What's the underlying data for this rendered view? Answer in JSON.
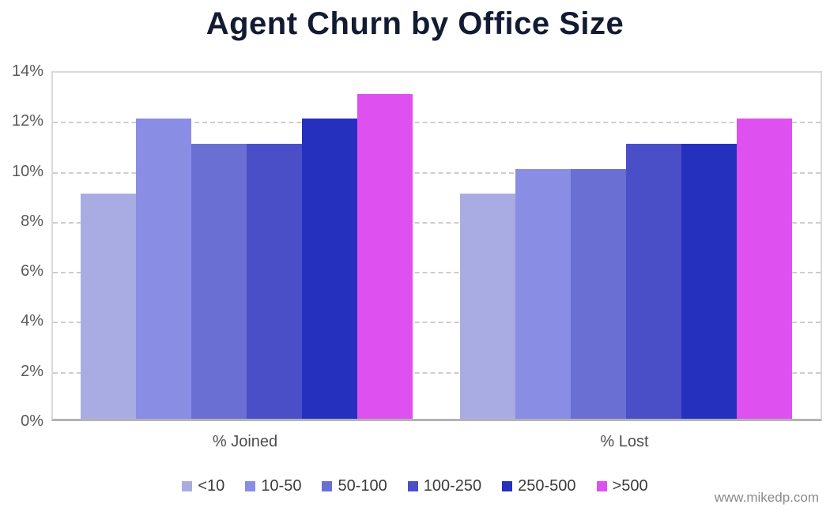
{
  "title": "Agent Churn by Office Size",
  "watermark": "www.mikedp.com",
  "colors": {
    "title_text": "#131b33",
    "axis_text": "#595959",
    "category_text": "#4d4d4d",
    "legend_text": "#3b3b3b",
    "gridline": "#cdcdcd",
    "plot_border": "#d9d9d9",
    "baseline": "#b3b3b3",
    "watermark_text": "#8a8a8a",
    "background": "#ffffff"
  },
  "chart_data": {
    "type": "bar",
    "title": "Agent Churn by Office Size",
    "categories": [
      "% Joined",
      "% Lost"
    ],
    "series": [
      {
        "name": "<10",
        "color": "#a9ace3",
        "values": [
          9,
          9
        ]
      },
      {
        "name": "10-50",
        "color": "#8a8de4",
        "values": [
          12,
          10
        ]
      },
      {
        "name": "50-100",
        "color": "#6a6fd4",
        "values": [
          11,
          10
        ]
      },
      {
        "name": "100-250",
        "color": "#4a4fc8",
        "values": [
          11,
          11
        ]
      },
      {
        "name": "250-500",
        "color": "#2530bf",
        "values": [
          12,
          11
        ]
      },
      {
        "name": ">500",
        "color": "#de51f0",
        "values": [
          13,
          12
        ]
      }
    ],
    "xlabel": "",
    "ylabel": "",
    "ylim": [
      0,
      14
    ],
    "ytick_step": 2,
    "ytick_labels": [
      "0%",
      "2%",
      "4%",
      "6%",
      "8%",
      "10%",
      "12%",
      "14%"
    ],
    "grid": "horizontal-dashed",
    "legend_position": "bottom"
  }
}
